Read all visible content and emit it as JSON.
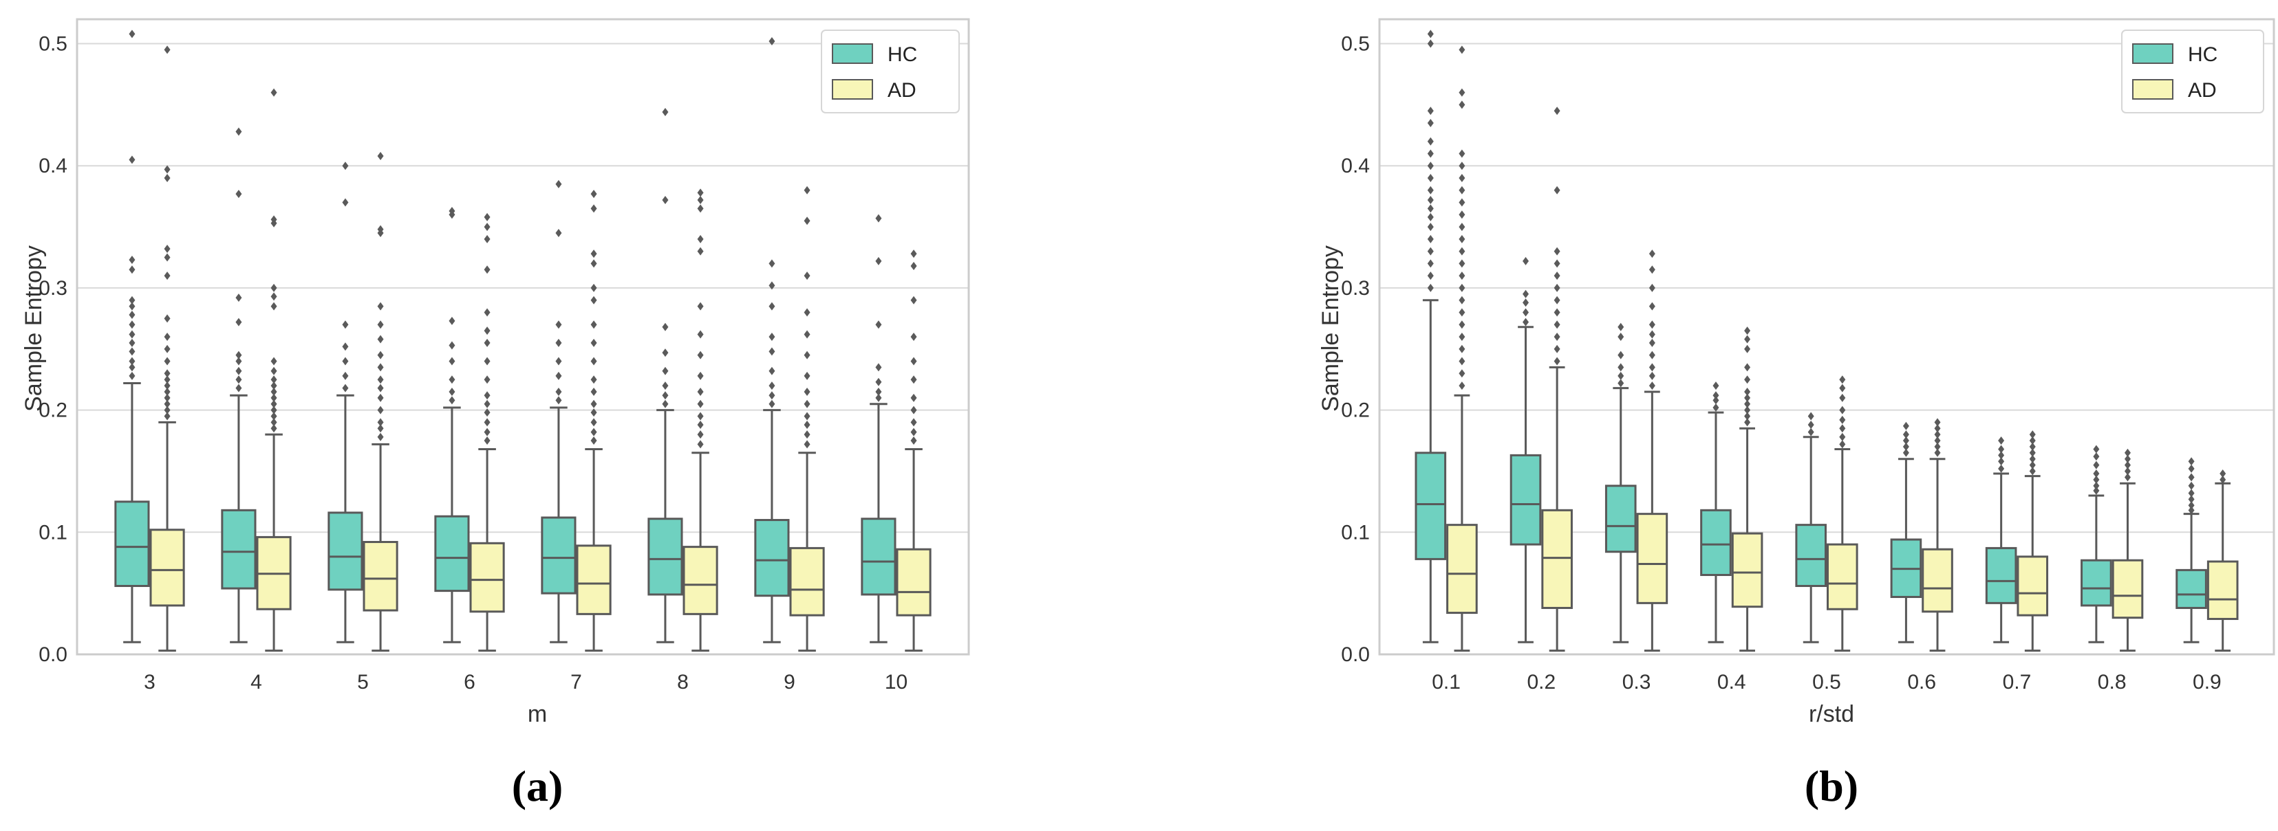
{
  "chart_data": [
    {
      "type": "box",
      "panel_label": "(a)",
      "xlabel": "m",
      "ylabel": "Sample Entropy",
      "ylim": [
        0,
        0.52
      ],
      "yticks": [
        "0.0",
        "0.1",
        "0.2",
        "0.3",
        "0.4",
        "0.5"
      ],
      "ytick_values": [
        0,
        0.1,
        0.2,
        0.3,
        0.4,
        0.5
      ],
      "categories": [
        "3",
        "4",
        "5",
        "6",
        "7",
        "8",
        "9",
        "10"
      ],
      "grid": "horizontal",
      "legend_position": "top-right",
      "series": [
        {
          "name": "HC",
          "color": "#6fd1c0",
          "boxes": [
            {
              "min": 0.01,
              "q1": 0.056,
              "median": 0.088,
              "q3": 0.125,
              "max": 0.222,
              "outliers": [
                0.228,
                0.235,
                0.24,
                0.248,
                0.255,
                0.262,
                0.27,
                0.278,
                0.285,
                0.29,
                0.315,
                0.323,
                0.405,
                0.508
              ]
            },
            {
              "min": 0.01,
              "q1": 0.054,
              "median": 0.084,
              "q3": 0.118,
              "max": 0.212,
              "outliers": [
                0.218,
                0.225,
                0.232,
                0.24,
                0.245,
                0.272,
                0.292,
                0.377,
                0.428
              ]
            },
            {
              "min": 0.01,
              "q1": 0.053,
              "median": 0.08,
              "q3": 0.116,
              "max": 0.212,
              "outliers": [
                0.218,
                0.228,
                0.24,
                0.252,
                0.27,
                0.37,
                0.4
              ]
            },
            {
              "min": 0.01,
              "q1": 0.052,
              "median": 0.079,
              "q3": 0.113,
              "max": 0.202,
              "outliers": [
                0.208,
                0.215,
                0.225,
                0.24,
                0.253,
                0.273,
                0.36,
                0.363
              ]
            },
            {
              "min": 0.01,
              "q1": 0.05,
              "median": 0.079,
              "q3": 0.112,
              "max": 0.202,
              "outliers": [
                0.208,
                0.215,
                0.228,
                0.24,
                0.255,
                0.27,
                0.345,
                0.385
              ]
            },
            {
              "min": 0.01,
              "q1": 0.049,
              "median": 0.078,
              "q3": 0.111,
              "max": 0.2,
              "outliers": [
                0.205,
                0.212,
                0.22,
                0.232,
                0.247,
                0.268,
                0.372,
                0.444
              ]
            },
            {
              "min": 0.01,
              "q1": 0.048,
              "median": 0.077,
              "q3": 0.11,
              "max": 0.2,
              "outliers": [
                0.205,
                0.212,
                0.22,
                0.232,
                0.248,
                0.26,
                0.285,
                0.302,
                0.32,
                0.502
              ]
            },
            {
              "min": 0.01,
              "q1": 0.049,
              "median": 0.076,
              "q3": 0.111,
              "max": 0.205,
              "outliers": [
                0.21,
                0.215,
                0.223,
                0.235,
                0.27,
                0.322,
                0.357
              ]
            }
          ]
        },
        {
          "name": "AD",
          "color": "#f8f6b8",
          "boxes": [
            {
              "min": 0.003,
              "q1": 0.04,
              "median": 0.069,
              "q3": 0.102,
              "max": 0.19,
              "outliers": [
                0.195,
                0.2,
                0.205,
                0.21,
                0.215,
                0.22,
                0.225,
                0.23,
                0.24,
                0.25,
                0.26,
                0.275,
                0.31,
                0.325,
                0.332,
                0.39,
                0.397,
                0.495
              ]
            },
            {
              "min": 0.003,
              "q1": 0.037,
              "median": 0.066,
              "q3": 0.096,
              "max": 0.18,
              "outliers": [
                0.185,
                0.19,
                0.195,
                0.2,
                0.205,
                0.21,
                0.215,
                0.22,
                0.225,
                0.232,
                0.24,
                0.285,
                0.293,
                0.3,
                0.353,
                0.356,
                0.46
              ]
            },
            {
              "min": 0.003,
              "q1": 0.036,
              "median": 0.062,
              "q3": 0.092,
              "max": 0.172,
              "outliers": [
                0.178,
                0.185,
                0.19,
                0.2,
                0.21,
                0.218,
                0.225,
                0.235,
                0.245,
                0.258,
                0.27,
                0.285,
                0.345,
                0.348,
                0.408
              ]
            },
            {
              "min": 0.003,
              "q1": 0.035,
              "median": 0.061,
              "q3": 0.091,
              "max": 0.168,
              "outliers": [
                0.175,
                0.182,
                0.19,
                0.198,
                0.205,
                0.212,
                0.225,
                0.24,
                0.255,
                0.265,
                0.28,
                0.315,
                0.34,
                0.35,
                0.358
              ]
            },
            {
              "min": 0.003,
              "q1": 0.033,
              "median": 0.058,
              "q3": 0.089,
              "max": 0.168,
              "outliers": [
                0.175,
                0.182,
                0.19,
                0.198,
                0.205,
                0.215,
                0.225,
                0.24,
                0.255,
                0.27,
                0.29,
                0.3,
                0.32,
                0.328,
                0.365,
                0.377
              ]
            },
            {
              "min": 0.003,
              "q1": 0.033,
              "median": 0.057,
              "q3": 0.088,
              "max": 0.165,
              "outliers": [
                0.172,
                0.18,
                0.188,
                0.195,
                0.205,
                0.215,
                0.228,
                0.245,
                0.262,
                0.285,
                0.33,
                0.34,
                0.365,
                0.372,
                0.378
              ]
            },
            {
              "min": 0.003,
              "q1": 0.032,
              "median": 0.053,
              "q3": 0.087,
              "max": 0.165,
              "outliers": [
                0.172,
                0.18,
                0.188,
                0.195,
                0.205,
                0.215,
                0.228,
                0.245,
                0.262,
                0.28,
                0.31,
                0.355,
                0.38
              ]
            },
            {
              "min": 0.003,
              "q1": 0.032,
              "median": 0.051,
              "q3": 0.086,
              "max": 0.168,
              "outliers": [
                0.175,
                0.182,
                0.19,
                0.2,
                0.21,
                0.225,
                0.24,
                0.26,
                0.29,
                0.318,
                0.328
              ]
            }
          ]
        }
      ]
    },
    {
      "type": "box",
      "panel_label": "(b)",
      "xlabel": "r/std",
      "ylabel": "Sample Entropy",
      "ylim": [
        0,
        0.52
      ],
      "yticks": [
        "0.0",
        "0.1",
        "0.2",
        "0.3",
        "0.4",
        "0.5"
      ],
      "ytick_values": [
        0,
        0.1,
        0.2,
        0.3,
        0.4,
        0.5
      ],
      "categories": [
        "0.1",
        "0.2",
        "0.3",
        "0.4",
        "0.5",
        "0.6",
        "0.7",
        "0.8",
        "0.9"
      ],
      "grid": "horizontal",
      "legend_position": "top-right",
      "series": [
        {
          "name": "HC",
          "color": "#6fd1c0",
          "boxes": [
            {
              "min": 0.01,
              "q1": 0.078,
              "median": 0.123,
              "q3": 0.165,
              "max": 0.29,
              "outliers": [
                0.3,
                0.31,
                0.32,
                0.33,
                0.34,
                0.35,
                0.358,
                0.365,
                0.372,
                0.38,
                0.39,
                0.4,
                0.41,
                0.42,
                0.435,
                0.445,
                0.5,
                0.508
              ]
            },
            {
              "min": 0.01,
              "q1": 0.09,
              "median": 0.123,
              "q3": 0.163,
              "max": 0.268,
              "outliers": [
                0.272,
                0.28,
                0.288,
                0.295,
                0.322
              ]
            },
            {
              "min": 0.01,
              "q1": 0.084,
              "median": 0.105,
              "q3": 0.138,
              "max": 0.218,
              "outliers": [
                0.222,
                0.228,
                0.235,
                0.245,
                0.26,
                0.268
              ]
            },
            {
              "min": 0.01,
              "q1": 0.065,
              "median": 0.09,
              "q3": 0.118,
              "max": 0.198,
              "outliers": [
                0.202,
                0.208,
                0.212,
                0.22
              ]
            },
            {
              "min": 0.01,
              "q1": 0.056,
              "median": 0.078,
              "q3": 0.106,
              "max": 0.178,
              "outliers": [
                0.182,
                0.188,
                0.195
              ]
            },
            {
              "min": 0.01,
              "q1": 0.047,
              "median": 0.07,
              "q3": 0.094,
              "max": 0.16,
              "outliers": [
                0.165,
                0.17,
                0.175,
                0.18,
                0.187
              ]
            },
            {
              "min": 0.01,
              "q1": 0.042,
              "median": 0.06,
              "q3": 0.087,
              "max": 0.148,
              "outliers": [
                0.152,
                0.158,
                0.163,
                0.168,
                0.175
              ]
            },
            {
              "min": 0.01,
              "q1": 0.04,
              "median": 0.054,
              "q3": 0.077,
              "max": 0.13,
              "outliers": [
                0.134,
                0.138,
                0.143,
                0.148,
                0.155,
                0.162,
                0.168
              ]
            },
            {
              "min": 0.01,
              "q1": 0.038,
              "median": 0.049,
              "q3": 0.069,
              "max": 0.115,
              "outliers": [
                0.118,
                0.122,
                0.127,
                0.132,
                0.138,
                0.145,
                0.152,
                0.158
              ]
            }
          ]
        },
        {
          "name": "AD",
          "color": "#f8f6b8",
          "boxes": [
            {
              "min": 0.003,
              "q1": 0.034,
              "median": 0.066,
              "q3": 0.106,
              "max": 0.212,
              "outliers": [
                0.22,
                0.23,
                0.24,
                0.25,
                0.26,
                0.27,
                0.28,
                0.29,
                0.3,
                0.31,
                0.32,
                0.33,
                0.34,
                0.35,
                0.36,
                0.37,
                0.38,
                0.39,
                0.4,
                0.41,
                0.45,
                0.46,
                0.495
              ]
            },
            {
              "min": 0.003,
              "q1": 0.038,
              "median": 0.079,
              "q3": 0.118,
              "max": 0.235,
              "outliers": [
                0.24,
                0.25,
                0.26,
                0.27,
                0.28,
                0.29,
                0.3,
                0.31,
                0.32,
                0.33,
                0.38,
                0.445
              ]
            },
            {
              "min": 0.003,
              "q1": 0.042,
              "median": 0.074,
              "q3": 0.115,
              "max": 0.215,
              "outliers": [
                0.22,
                0.228,
                0.235,
                0.245,
                0.255,
                0.262,
                0.27,
                0.285,
                0.3,
                0.315,
                0.328
              ]
            },
            {
              "min": 0.003,
              "q1": 0.039,
              "median": 0.067,
              "q3": 0.099,
              "max": 0.185,
              "outliers": [
                0.19,
                0.195,
                0.2,
                0.205,
                0.21,
                0.215,
                0.225,
                0.235,
                0.25,
                0.258,
                0.265
              ]
            },
            {
              "min": 0.003,
              "q1": 0.037,
              "median": 0.058,
              "q3": 0.09,
              "max": 0.168,
              "outliers": [
                0.172,
                0.178,
                0.185,
                0.192,
                0.2,
                0.21,
                0.218,
                0.225
              ]
            },
            {
              "min": 0.003,
              "q1": 0.035,
              "median": 0.054,
              "q3": 0.086,
              "max": 0.16,
              "outliers": [
                0.165,
                0.17,
                0.175,
                0.18,
                0.185,
                0.19
              ]
            },
            {
              "min": 0.003,
              "q1": 0.032,
              "median": 0.05,
              "q3": 0.08,
              "max": 0.146,
              "outliers": [
                0.15,
                0.155,
                0.16,
                0.165,
                0.17,
                0.175,
                0.18
              ]
            },
            {
              "min": 0.003,
              "q1": 0.03,
              "median": 0.048,
              "q3": 0.077,
              "max": 0.14,
              "outliers": [
                0.145,
                0.15,
                0.155,
                0.16,
                0.165
              ]
            },
            {
              "min": 0.003,
              "q1": 0.029,
              "median": 0.045,
              "q3": 0.076,
              "max": 0.14,
              "outliers": [
                0.143,
                0.148
              ]
            }
          ]
        }
      ]
    }
  ]
}
